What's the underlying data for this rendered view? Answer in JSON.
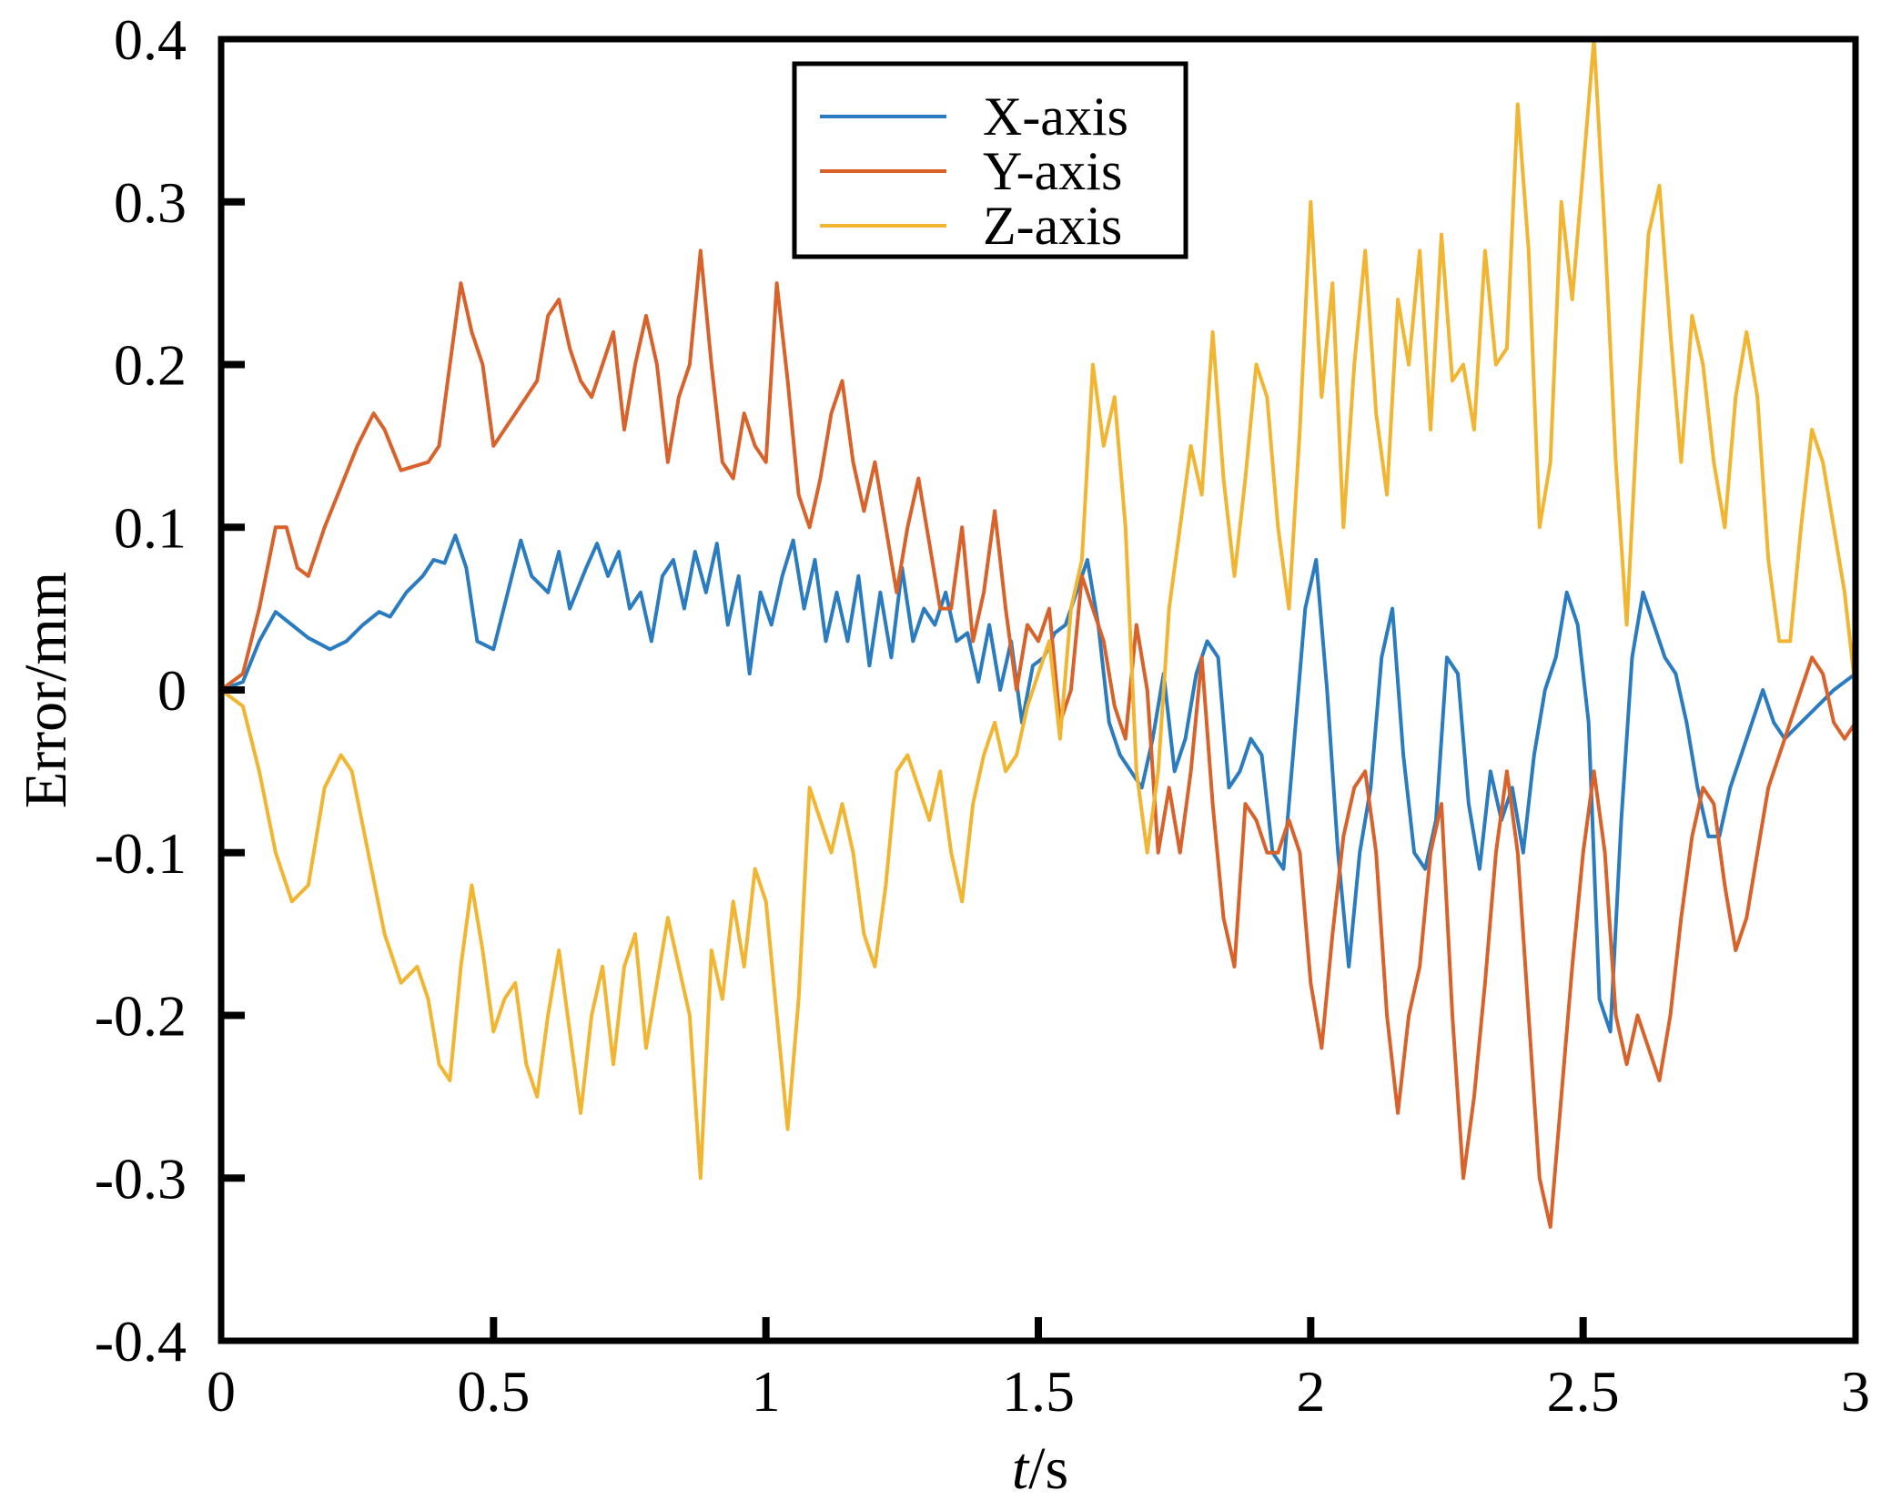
{
  "chart_data": {
    "type": "line",
    "title": "",
    "xlabel": {
      "italic": "t",
      "rest": "/s"
    },
    "ylabel": "Error/mm",
    "xlim": [
      0,
      3
    ],
    "ylim": [
      -0.4,
      0.4
    ],
    "x_ticks": [
      0,
      0.5,
      1,
      1.5,
      2,
      2.5,
      3
    ],
    "x_tick_labels": [
      "0",
      "0.5",
      "1",
      "1.5",
      "2",
      "2.5",
      "3"
    ],
    "y_ticks": [
      0.4,
      0.3,
      0.2,
      0.1,
      0,
      -0.1,
      -0.2,
      -0.3,
      -0.4
    ],
    "y_tick_labels": [
      "0.4",
      "0.3",
      "0.2",
      "0.1",
      "0",
      "-0.1",
      "-0.2",
      "-0.3",
      "-0.4"
    ],
    "legend_position": "top-center",
    "series": [
      {
        "name": "X-axis",
        "color": "#2a7bbf",
        "x": [
          0,
          0.04,
          0.07,
          0.1,
          0.13,
          0.16,
          0.2,
          0.23,
          0.26,
          0.29,
          0.31,
          0.34,
          0.37,
          0.39,
          0.41,
          0.43,
          0.45,
          0.47,
          0.5,
          0.53,
          0.55,
          0.57,
          0.6,
          0.62,
          0.64,
          0.67,
          0.69,
          0.71,
          0.73,
          0.75,
          0.77,
          0.79,
          0.81,
          0.83,
          0.85,
          0.87,
          0.89,
          0.91,
          0.93,
          0.95,
          0.97,
          0.99,
          1.01,
          1.03,
          1.05,
          1.07,
          1.09,
          1.11,
          1.13,
          1.15,
          1.17,
          1.19,
          1.21,
          1.23,
          1.25,
          1.27,
          1.29,
          1.31,
          1.33,
          1.35,
          1.37,
          1.39,
          1.41,
          1.43,
          1.45,
          1.47,
          1.49,
          1.51,
          1.53,
          1.55,
          1.57,
          1.59,
          1.61,
          1.63,
          1.65,
          1.67,
          1.69,
          1.71,
          1.73,
          1.75,
          1.77,
          1.79,
          1.81,
          1.83,
          1.85,
          1.87,
          1.89,
          1.91,
          1.93,
          1.95,
          1.97,
          1.99,
          2.01,
          2.03,
          2.05,
          2.07,
          2.09,
          2.11,
          2.13,
          2.15,
          2.17,
          2.19,
          2.21,
          2.23,
          2.25,
          2.27,
          2.29,
          2.31,
          2.33,
          2.35,
          2.37,
          2.39,
          2.41,
          2.43,
          2.45,
          2.47,
          2.49,
          2.51,
          2.53,
          2.55,
          2.57,
          2.59,
          2.61,
          2.63,
          2.65,
          2.67,
          2.69,
          2.71,
          2.73,
          2.75,
          2.77,
          2.79,
          2.81,
          2.83,
          2.85,
          2.87,
          2.9,
          2.93,
          2.96,
          3.0
        ],
        "y": [
          0.0,
          0.005,
          0.03,
          0.048,
          0.04,
          0.032,
          0.025,
          0.03,
          0.04,
          0.048,
          0.045,
          0.06,
          0.07,
          0.08,
          0.078,
          0.095,
          0.075,
          0.03,
          0.025,
          0.065,
          0.092,
          0.07,
          0.06,
          0.085,
          0.05,
          0.075,
          0.09,
          0.07,
          0.085,
          0.05,
          0.06,
          0.03,
          0.07,
          0.08,
          0.05,
          0.085,
          0.06,
          0.09,
          0.04,
          0.07,
          0.01,
          0.06,
          0.04,
          0.07,
          0.092,
          0.05,
          0.08,
          0.03,
          0.06,
          0.03,
          0.07,
          0.015,
          0.06,
          0.02,
          0.075,
          0.03,
          0.05,
          0.04,
          0.06,
          0.03,
          0.035,
          0.005,
          0.04,
          0.0,
          0.03,
          -0.02,
          0.015,
          0.02,
          0.035,
          0.04,
          0.06,
          0.08,
          0.04,
          -0.02,
          -0.04,
          -0.05,
          -0.06,
          -0.03,
          0.01,
          -0.05,
          -0.03,
          0.01,
          0.03,
          0.02,
          -0.06,
          -0.05,
          -0.03,
          -0.04,
          -0.1,
          -0.11,
          -0.03,
          0.05,
          0.08,
          0.0,
          -0.1,
          -0.17,
          -0.1,
          -0.06,
          0.02,
          0.05,
          -0.04,
          -0.1,
          -0.11,
          -0.08,
          0.02,
          0.01,
          -0.07,
          -0.11,
          -0.05,
          -0.08,
          -0.06,
          -0.1,
          -0.04,
          0.0,
          0.02,
          0.06,
          0.04,
          -0.02,
          -0.19,
          -0.21,
          -0.08,
          0.02,
          0.06,
          0.04,
          0.02,
          0.01,
          -0.02,
          -0.06,
          -0.09,
          -0.09,
          -0.06,
          -0.04,
          -0.02,
          0.0,
          -0.02,
          -0.03,
          -0.02,
          -0.01,
          0.0,
          0.01
        ]
      },
      {
        "name": "Y-axis",
        "color": "#d9622b",
        "x": [
          0,
          0.04,
          0.07,
          0.1,
          0.12,
          0.14,
          0.16,
          0.19,
          0.22,
          0.25,
          0.28,
          0.3,
          0.33,
          0.36,
          0.38,
          0.4,
          0.42,
          0.44,
          0.46,
          0.48,
          0.5,
          0.52,
          0.54,
          0.56,
          0.58,
          0.6,
          0.62,
          0.64,
          0.66,
          0.68,
          0.7,
          0.72,
          0.74,
          0.76,
          0.78,
          0.8,
          0.82,
          0.84,
          0.86,
          0.88,
          0.9,
          0.92,
          0.94,
          0.96,
          0.98,
          1.0,
          1.02,
          1.04,
          1.06,
          1.08,
          1.1,
          1.12,
          1.14,
          1.16,
          1.18,
          1.2,
          1.22,
          1.24,
          1.26,
          1.28,
          1.3,
          1.32,
          1.34,
          1.36,
          1.38,
          1.4,
          1.42,
          1.44,
          1.46,
          1.48,
          1.5,
          1.52,
          1.54,
          1.56,
          1.58,
          1.6,
          1.62,
          1.64,
          1.66,
          1.68,
          1.7,
          1.72,
          1.74,
          1.76,
          1.78,
          1.8,
          1.82,
          1.84,
          1.86,
          1.88,
          1.9,
          1.92,
          1.94,
          1.96,
          1.98,
          2.0,
          2.02,
          2.04,
          2.06,
          2.08,
          2.1,
          2.12,
          2.14,
          2.16,
          2.18,
          2.2,
          2.22,
          2.24,
          2.26,
          2.28,
          2.3,
          2.32,
          2.34,
          2.36,
          2.38,
          2.4,
          2.42,
          2.44,
          2.46,
          2.48,
          2.5,
          2.52,
          2.54,
          2.56,
          2.58,
          2.6,
          2.62,
          2.64,
          2.66,
          2.68,
          2.7,
          2.72,
          2.74,
          2.76,
          2.78,
          2.8,
          2.82,
          2.84,
          2.86,
          2.88,
          2.9,
          2.92,
          2.94,
          2.96,
          2.98,
          3.0
        ],
        "y": [
          0.0,
          0.01,
          0.05,
          0.1,
          0.1,
          0.075,
          0.07,
          0.1,
          0.125,
          0.15,
          0.17,
          0.16,
          0.135,
          0.138,
          0.14,
          0.15,
          0.2,
          0.25,
          0.22,
          0.2,
          0.15,
          0.16,
          0.17,
          0.18,
          0.19,
          0.23,
          0.24,
          0.21,
          0.19,
          0.18,
          0.2,
          0.22,
          0.16,
          0.2,
          0.23,
          0.2,
          0.14,
          0.18,
          0.2,
          0.27,
          0.2,
          0.14,
          0.13,
          0.17,
          0.15,
          0.14,
          0.25,
          0.19,
          0.12,
          0.1,
          0.13,
          0.17,
          0.19,
          0.14,
          0.11,
          0.14,
          0.1,
          0.06,
          0.1,
          0.13,
          0.09,
          0.05,
          0.05,
          0.1,
          0.03,
          0.06,
          0.11,
          0.05,
          0.0,
          0.04,
          0.03,
          0.05,
          -0.02,
          0.0,
          0.07,
          0.05,
          0.03,
          -0.01,
          -0.03,
          0.04,
          0.0,
          -0.1,
          -0.06,
          -0.1,
          -0.05,
          0.02,
          -0.07,
          -0.14,
          -0.17,
          -0.07,
          -0.08,
          -0.1,
          -0.1,
          -0.08,
          -0.1,
          -0.18,
          -0.22,
          -0.15,
          -0.09,
          -0.06,
          -0.05,
          -0.1,
          -0.2,
          -0.26,
          -0.2,
          -0.17,
          -0.1,
          -0.07,
          -0.2,
          -0.3,
          -0.25,
          -0.18,
          -0.1,
          -0.05,
          -0.1,
          -0.2,
          -0.3,
          -0.33,
          -0.25,
          -0.17,
          -0.1,
          -0.05,
          -0.1,
          -0.2,
          -0.23,
          -0.2,
          -0.22,
          -0.24,
          -0.2,
          -0.14,
          -0.09,
          -0.06,
          -0.07,
          -0.12,
          -0.16,
          -0.14,
          -0.1,
          -0.06,
          -0.04,
          -0.02,
          0.0,
          0.02,
          0.01,
          -0.02,
          -0.03,
          -0.02
        ]
      },
      {
        "name": "Z-axis",
        "color": "#f2b531",
        "x": [
          0,
          0.04,
          0.07,
          0.1,
          0.13,
          0.16,
          0.19,
          0.22,
          0.24,
          0.27,
          0.3,
          0.33,
          0.36,
          0.38,
          0.4,
          0.42,
          0.44,
          0.46,
          0.48,
          0.5,
          0.52,
          0.54,
          0.56,
          0.58,
          0.6,
          0.62,
          0.64,
          0.66,
          0.68,
          0.7,
          0.72,
          0.74,
          0.76,
          0.78,
          0.8,
          0.82,
          0.84,
          0.86,
          0.88,
          0.9,
          0.92,
          0.94,
          0.96,
          0.98,
          1.0,
          1.02,
          1.04,
          1.06,
          1.08,
          1.1,
          1.12,
          1.14,
          1.16,
          1.18,
          1.2,
          1.22,
          1.24,
          1.26,
          1.28,
          1.3,
          1.32,
          1.34,
          1.36,
          1.38,
          1.4,
          1.42,
          1.44,
          1.46,
          1.48,
          1.5,
          1.52,
          1.54,
          1.56,
          1.58,
          1.6,
          1.62,
          1.64,
          1.66,
          1.68,
          1.7,
          1.72,
          1.74,
          1.76,
          1.78,
          1.8,
          1.82,
          1.84,
          1.86,
          1.88,
          1.9,
          1.92,
          1.94,
          1.96,
          1.98,
          2.0,
          2.02,
          2.04,
          2.06,
          2.08,
          2.1,
          2.12,
          2.14,
          2.16,
          2.18,
          2.2,
          2.22,
          2.24,
          2.26,
          2.28,
          2.3,
          2.32,
          2.34,
          2.36,
          2.38,
          2.4,
          2.42,
          2.44,
          2.46,
          2.48,
          2.5,
          2.52,
          2.54,
          2.56,
          2.58,
          2.6,
          2.62,
          2.64,
          2.66,
          2.68,
          2.7,
          2.72,
          2.74,
          2.76,
          2.78,
          2.8,
          2.82,
          2.84,
          2.86,
          2.88,
          2.9,
          2.92,
          2.94,
          2.96,
          2.98,
          3.0
        ],
        "y": [
          0.0,
          -0.01,
          -0.05,
          -0.1,
          -0.13,
          -0.12,
          -0.06,
          -0.04,
          -0.05,
          -0.1,
          -0.15,
          -0.18,
          -0.17,
          -0.19,
          -0.23,
          -0.24,
          -0.17,
          -0.12,
          -0.16,
          -0.21,
          -0.19,
          -0.18,
          -0.23,
          -0.25,
          -0.2,
          -0.16,
          -0.21,
          -0.26,
          -0.2,
          -0.17,
          -0.23,
          -0.17,
          -0.15,
          -0.22,
          -0.18,
          -0.14,
          -0.17,
          -0.2,
          -0.3,
          -0.16,
          -0.19,
          -0.13,
          -0.17,
          -0.11,
          -0.13,
          -0.2,
          -0.27,
          -0.19,
          -0.06,
          -0.08,
          -0.1,
          -0.07,
          -0.1,
          -0.15,
          -0.17,
          -0.12,
          -0.05,
          -0.04,
          -0.06,
          -0.08,
          -0.05,
          -0.1,
          -0.13,
          -0.07,
          -0.04,
          -0.02,
          -0.05,
          -0.04,
          -0.01,
          0.01,
          0.03,
          -0.03,
          0.05,
          0.08,
          0.2,
          0.15,
          0.18,
          0.1,
          -0.05,
          -0.1,
          -0.05,
          0.05,
          0.1,
          0.15,
          0.12,
          0.22,
          0.13,
          0.07,
          0.13,
          0.2,
          0.18,
          0.1,
          0.05,
          0.16,
          0.3,
          0.18,
          0.25,
          0.1,
          0.2,
          0.27,
          0.17,
          0.12,
          0.24,
          0.2,
          0.27,
          0.16,
          0.28,
          0.19,
          0.2,
          0.16,
          0.27,
          0.2,
          0.21,
          0.36,
          0.27,
          0.1,
          0.14,
          0.3,
          0.24,
          0.32,
          0.4,
          0.28,
          0.14,
          0.04,
          0.17,
          0.28,
          0.31,
          0.22,
          0.14,
          0.23,
          0.2,
          0.14,
          0.1,
          0.18,
          0.22,
          0.18,
          0.08,
          0.03,
          0.03,
          0.1,
          0.16,
          0.14,
          0.1,
          0.06,
          0.0
        ]
      }
    ]
  }
}
